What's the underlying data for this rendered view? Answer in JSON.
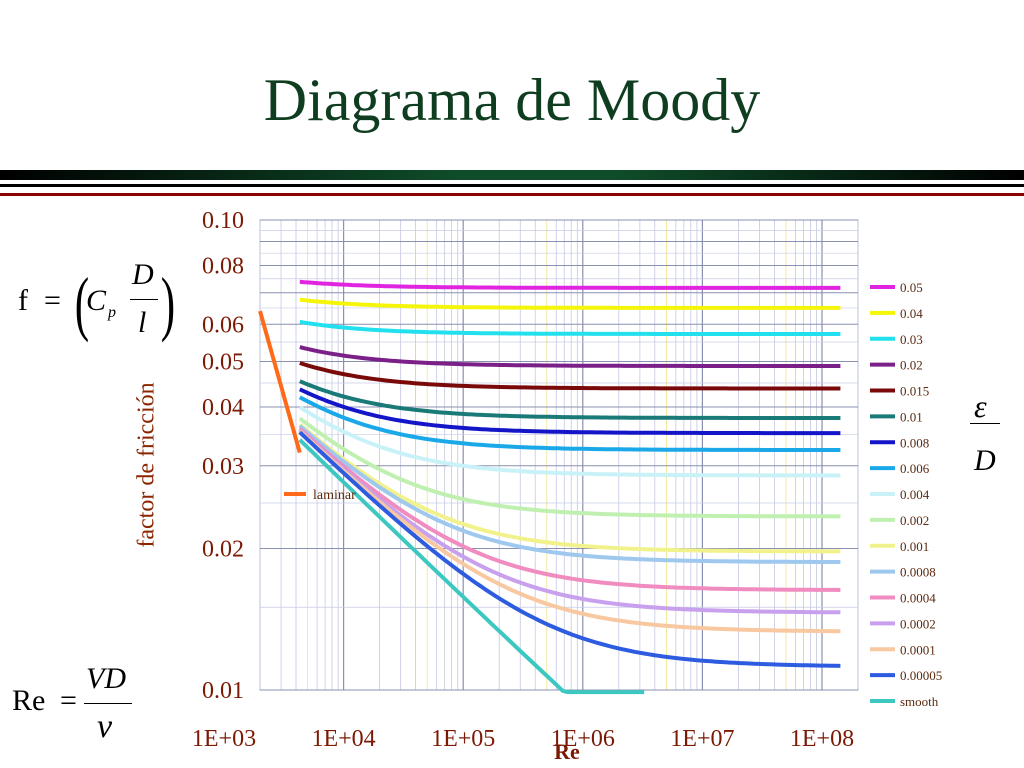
{
  "title": "Diagrama de Moody",
  "colors": {
    "title": "#0f3d1f",
    "band_dark": "#000000",
    "band_green": "#0f4d2a",
    "band_red": "#8b0000"
  },
  "formulas": {
    "friction": {
      "f": "f",
      "eq": "=",
      "C": "C",
      "p": "p",
      "D": "D",
      "l": "l"
    },
    "reynolds": {
      "re": "Re",
      "eq": "=",
      "num": "VD",
      "den": "ν"
    },
    "roughness": {
      "num": "ε",
      "den": "D"
    }
  },
  "chart_data": {
    "type": "line",
    "title": "",
    "xlabel": "Re",
    "ylabel": "factor de fricción",
    "x_scale": "log",
    "y_scale": "log",
    "xlim": [
      2000,
      200000000
    ],
    "ylim": [
      0.01,
      0.1
    ],
    "x_ticks": [
      "1E+03",
      "1E+04",
      "1E+05",
      "1E+06",
      "1E+07",
      "1E+08"
    ],
    "y_ticks": [
      "0.10",
      "0.08",
      "0.06",
      "0.05",
      "0.04",
      "0.03",
      "0.02",
      "0.01"
    ],
    "legend_title": "ε / D",
    "legend_position": "right",
    "laminar": {
      "name": "laminar",
      "color": "#ff6a1a",
      "x": [
        2000,
        4300
      ],
      "y": [
        0.064,
        0.032
      ]
    },
    "series": [
      {
        "name": "0.05",
        "color": "#e024e0",
        "f_inf": 0.0717
      },
      {
        "name": "0.04",
        "color": "#f5f50a",
        "f_inf": 0.065
      },
      {
        "name": "0.03",
        "color": "#22e0ee",
        "f_inf": 0.0572
      },
      {
        "name": "0.02",
        "color": "#7b2088",
        "f_inf": 0.0489
      },
      {
        "name": "0.015",
        "color": "#7a0a0a",
        "f_inf": 0.0438
      },
      {
        "name": "0.01",
        "color": "#1a7a78",
        "f_inf": 0.0379
      },
      {
        "name": "0.008",
        "color": "#1414c8",
        "f_inf": 0.0352
      },
      {
        "name": "0.006",
        "color": "#1aa8e8",
        "f_inf": 0.0324
      },
      {
        "name": "0.004",
        "color": "#c8f2f8",
        "f_inf": 0.0286
      },
      {
        "name": "0.002",
        "color": "#c0f0b0",
        "f_inf": 0.0234
      },
      {
        "name": "0.001",
        "color": "#f2f28c",
        "f_inf": 0.0197
      },
      {
        "name": "0.0008",
        "color": "#9ec8ee",
        "f_inf": 0.0187
      },
      {
        "name": "0.0004",
        "color": "#f08cc0",
        "f_inf": 0.0163
      },
      {
        "name": "0.0002",
        "color": "#c8a0ee",
        "f_inf": 0.0146
      },
      {
        "name": "0.0001",
        "color": "#f8c8a0",
        "f_inf": 0.0133
      },
      {
        "name": "0.00005",
        "color": "#2e5ce0",
        "f_inf": 0.0112
      },
      {
        "name": "smooth",
        "color": "#3cc8c0",
        "f_inf": 0
      }
    ]
  }
}
